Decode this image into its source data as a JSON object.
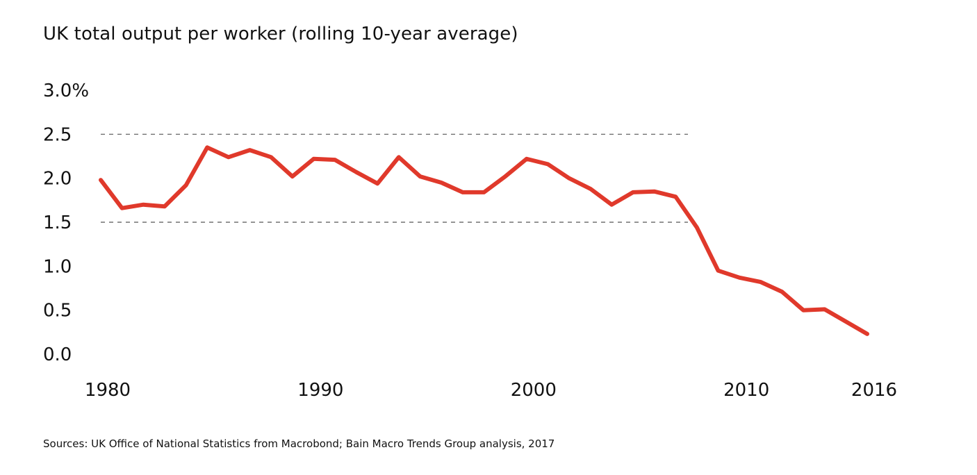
{
  "title": "UK total output per worker (rolling 10-year average)",
  "source": "Sources: UK Office of National Statistics from Macrobond; Bain Macro Trends Group analysis, 2017",
  "colors": {
    "series": "#e0392b",
    "grid": "#555555",
    "text": "#111111"
  },
  "chart_data": {
    "type": "line",
    "title": "UK total output per worker (rolling 10-year average)",
    "xlabel": "",
    "ylabel": "",
    "xlim": [
      1980,
      2016
    ],
    "ylim": [
      0,
      3
    ],
    "grid": "dashed horizontal lines at 1.5 and 2.5",
    "y_ticks": [
      {
        "value": 3.0,
        "label": "3.0%"
      },
      {
        "value": 2.5,
        "label": "2.5"
      },
      {
        "value": 2.0,
        "label": "2.0"
      },
      {
        "value": 1.5,
        "label": "1.5"
      },
      {
        "value": 1.0,
        "label": "1.0"
      },
      {
        "value": 0.5,
        "label": "0.5"
      },
      {
        "value": 0.0,
        "label": "0.0"
      }
    ],
    "x_ticks": [
      {
        "value": 1980,
        "label": "1980"
      },
      {
        "value": 1990,
        "label": "1990"
      },
      {
        "value": 2000,
        "label": "2000"
      },
      {
        "value": 2010,
        "label": "2010"
      },
      {
        "value": 2016,
        "label": "2016"
      }
    ],
    "gridlines": [
      2.5,
      1.5
    ],
    "series": [
      {
        "x": [
          1980,
          1981,
          1982,
          1983,
          1984,
          1985,
          1986,
          1987,
          1988,
          1989,
          1990,
          1991,
          1992,
          1993,
          1994,
          1995,
          1996,
          1997,
          1998,
          1999,
          2000,
          2001,
          2002,
          2003,
          2004,
          2005,
          2006,
          2007,
          2008,
          2009,
          2010,
          2011,
          2012,
          2013,
          2014,
          2015,
          2016
        ],
        "values": [
          1.98,
          1.66,
          1.7,
          1.68,
          1.92,
          2.35,
          2.24,
          2.32,
          2.24,
          2.02,
          2.22,
          2.21,
          2.07,
          1.94,
          2.24,
          2.02,
          1.95,
          1.84,
          1.84,
          2.02,
          2.22,
          2.16,
          2.0,
          1.88,
          1.7,
          1.84,
          1.85,
          1.79,
          1.44,
          0.95,
          0.87,
          0.82,
          0.71,
          0.5,
          0.51,
          0.37,
          0.23
        ]
      }
    ]
  }
}
